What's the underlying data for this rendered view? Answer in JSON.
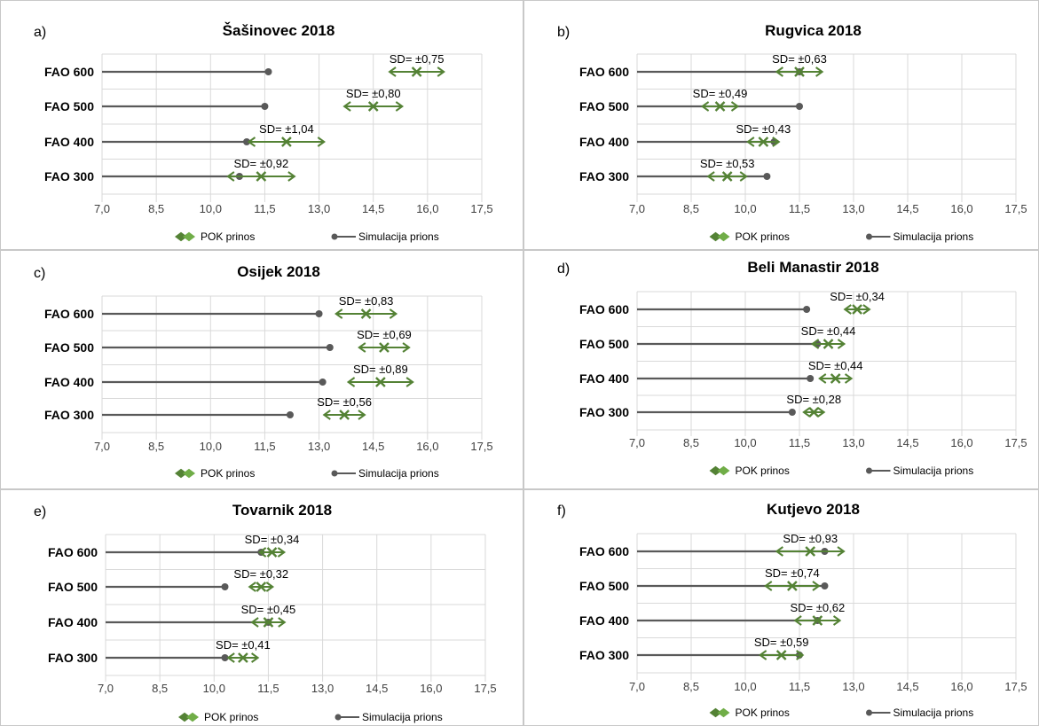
{
  "chart_data": [
    {
      "panel": "a)",
      "title": "Šašinovec 2018",
      "type": "dot-plot-with-error-bars",
      "categories": [
        "FAO 600",
        "FAO 500",
        "FAO 400",
        "FAO 300"
      ],
      "xlim": [
        7.0,
        17.5
      ],
      "xticks": [
        "7,0",
        "8,5",
        "10,0",
        "11,5",
        "13,0",
        "14,5",
        "16,0",
        "17,5"
      ],
      "grid": "vertical",
      "legend": {
        "position": "bottom",
        "entries": [
          "POK prinos",
          "Simulacija prions"
        ]
      },
      "series": [
        {
          "name": "Simulacija prions",
          "values": [
            11.6,
            11.5,
            11.0,
            10.8
          ]
        },
        {
          "name": "POK prinos",
          "values": [
            15.7,
            14.5,
            12.1,
            11.4
          ],
          "sd": [
            0.75,
            0.8,
            1.04,
            0.92
          ],
          "sd_labels": [
            "SD= ±0,75",
            "SD= ±0,80",
            "SD= ±1,04",
            "SD= ±0,92"
          ]
        }
      ]
    },
    {
      "panel": "b)",
      "title": "Rugvica 2018",
      "type": "dot-plot-with-error-bars",
      "categories": [
        "FAO 600",
        "FAO 500",
        "FAO 400",
        "FAO 300"
      ],
      "xlim": [
        7.0,
        17.5
      ],
      "xticks": [
        "7,0",
        "8,5",
        "10,0",
        "11,5",
        "13,0",
        "14,5",
        "16,0",
        "17,5"
      ],
      "grid": "vertical",
      "legend": {
        "position": "bottom",
        "entries": [
          "POK prinos",
          "Simulacija prions"
        ]
      },
      "series": [
        {
          "name": "Simulacija prions",
          "values": [
            11.5,
            11.5,
            10.8,
            10.6
          ]
        },
        {
          "name": "POK prinos",
          "values": [
            11.5,
            9.3,
            10.5,
            9.5
          ],
          "sd": [
            0.63,
            0.49,
            0.43,
            0.53
          ],
          "sd_labels": [
            "SD= ±0,63",
            "SD= ±0,49",
            "SD= ±0,43",
            "SD= ±0,53"
          ]
        }
      ]
    },
    {
      "panel": "c)",
      "title": "Osijek 2018",
      "type": "dot-plot-with-error-bars",
      "categories": [
        "FAO 600",
        "FAO 500",
        "FAO 400",
        "FAO 300"
      ],
      "xlim": [
        7.0,
        17.5
      ],
      "xticks": [
        "7,0",
        "8,5",
        "10,0",
        "11,5",
        "13,0",
        "14,5",
        "16,0",
        "17,5"
      ],
      "grid": "vertical",
      "legend": {
        "position": "bottom",
        "entries": [
          "POK prinos",
          "Simulacija prions"
        ]
      },
      "series": [
        {
          "name": "Simulacija prions",
          "values": [
            13.0,
            13.3,
            13.1,
            12.2
          ]
        },
        {
          "name": "POK prinos",
          "values": [
            14.3,
            14.8,
            14.7,
            13.7
          ],
          "sd": [
            0.83,
            0.69,
            0.89,
            0.56
          ],
          "sd_labels": [
            "SD= ±0,83",
            "SD= ±0,69",
            "SD= ±0,89",
            "SD= ±0,56"
          ]
        }
      ]
    },
    {
      "panel": "d)",
      "title": "Beli Manastir 2018",
      "type": "dot-plot-with-error-bars",
      "categories": [
        "FAO 600",
        "FAO 500",
        "FAO 400",
        "FAO 300"
      ],
      "xlim": [
        7.0,
        17.5
      ],
      "xticks": [
        "7,0",
        "8,5",
        "10,0",
        "11,5",
        "13,0",
        "14,5",
        "16,0",
        "17,5"
      ],
      "grid": "vertical",
      "legend": {
        "position": "bottom",
        "entries": [
          "POK prinos",
          "Simulacija prions"
        ]
      },
      "series": [
        {
          "name": "Simulacija prions",
          "values": [
            11.7,
            12.0,
            11.8,
            11.3
          ]
        },
        {
          "name": "POK prinos",
          "values": [
            13.1,
            12.3,
            12.5,
            11.9
          ],
          "sd": [
            0.34,
            0.44,
            0.44,
            0.28
          ],
          "sd_labels": [
            "SD= ±0,34",
            "SD= ±0,44",
            "SD= ±0,44",
            "SD= ±0,28"
          ]
        }
      ]
    },
    {
      "panel": "e)",
      "title": "Tovarnik 2018",
      "type": "dot-plot-with-error-bars",
      "categories": [
        "FAO 600",
        "FAO 500",
        "FAO 400",
        "FAO 300"
      ],
      "xlim": [
        7.0,
        17.5
      ],
      "xticks": [
        "7,0",
        "8,5",
        "10,0",
        "11,5",
        "13,0",
        "14,5",
        "16,0",
        "17,5"
      ],
      "grid": "vertical",
      "legend": {
        "position": "bottom",
        "entries": [
          "POK prinos",
          "Simulacija prions"
        ]
      },
      "series": [
        {
          "name": "Simulacija prions",
          "values": [
            11.3,
            10.3,
            11.5,
            10.3
          ]
        },
        {
          "name": "POK prinos",
          "values": [
            11.6,
            11.3,
            11.5,
            10.8
          ],
          "sd": [
            0.34,
            0.32,
            0.45,
            0.41
          ],
          "sd_labels": [
            "SD= ±0,34",
            "SD= ±0,32",
            "SD= ±0,45",
            "SD= ±0,41"
          ]
        }
      ]
    },
    {
      "panel": "f)",
      "title": "Kutjevo 2018",
      "type": "dot-plot-with-error-bars",
      "categories": [
        "FAO 600",
        "FAO 500",
        "FAO 400",
        "FAO 300"
      ],
      "xlim": [
        7.0,
        17.5
      ],
      "xticks": [
        "7,0",
        "8,5",
        "10,0",
        "11,5",
        "13,0",
        "14,5",
        "16,0",
        "17,5"
      ],
      "grid": "vertical",
      "legend": {
        "position": "bottom",
        "entries": [
          "POK prinos",
          "Simulacija prions"
        ]
      },
      "series": [
        {
          "name": "Simulacija prions",
          "values": [
            12.2,
            12.2,
            12.0,
            11.5
          ]
        },
        {
          "name": "POK prinos",
          "values": [
            11.8,
            11.3,
            12.0,
            11.0
          ],
          "sd": [
            0.93,
            0.74,
            0.62,
            0.59
          ],
          "sd_labels": [
            "SD= ±0,93",
            "SD= ±0,74",
            "SD= ±0,62",
            "SD= ±0,59"
          ]
        }
      ]
    }
  ],
  "colors": {
    "simulation": "#595959",
    "simulation_dark": "#262626",
    "observed": "#548235",
    "observed_light": "#70ad47",
    "grid": "#d9d9d9",
    "panel_border": "#c8c8c8"
  }
}
